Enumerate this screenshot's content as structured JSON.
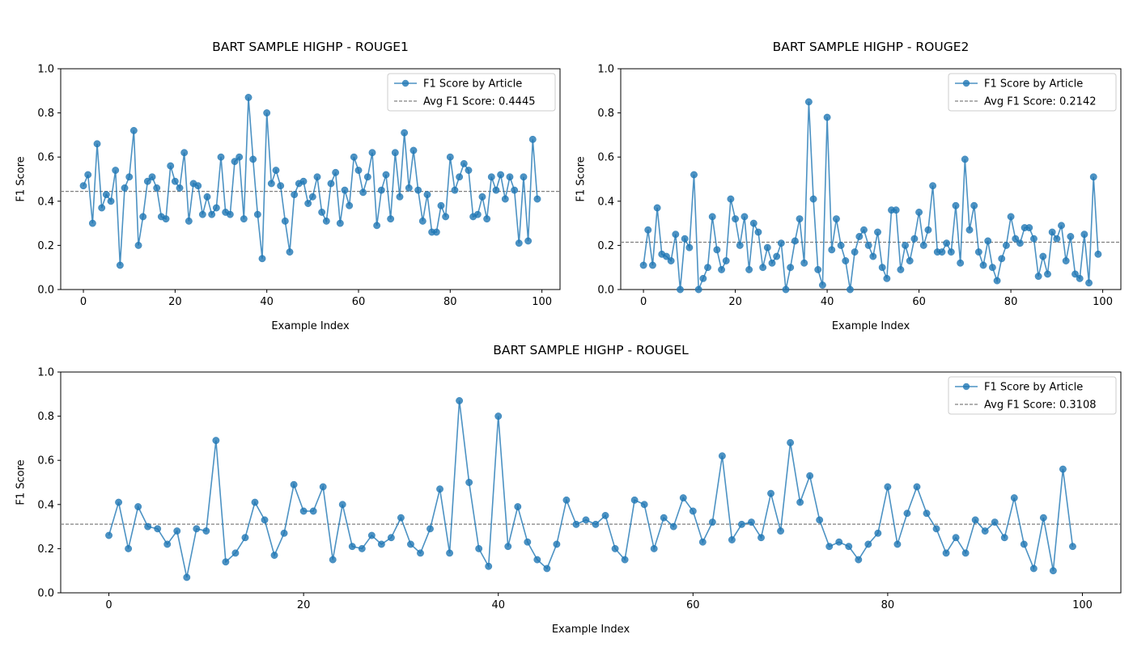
{
  "chart_data": [
    {
      "type": "line",
      "title": "BART SAMPLE HIGHP - ROUGE1",
      "xlabel": "Example Index",
      "ylabel": "F1 Score",
      "xlim": [
        -4.95,
        103.95
      ],
      "ylim": [
        0,
        1.0
      ],
      "xticks": [
        0,
        20,
        40,
        60,
        80,
        100
      ],
      "yticks": [
        0.0,
        0.2,
        0.4,
        0.6,
        0.8,
        1.0
      ],
      "grid": false,
      "legend_position": "top-right",
      "series": [
        {
          "name": "F1 Score by Article",
          "color": "#1f77b4",
          "x": [
            0,
            1,
            2,
            3,
            4,
            5,
            6,
            7,
            8,
            9,
            10,
            11,
            12,
            13,
            14,
            15,
            16,
            17,
            18,
            19,
            20,
            21,
            22,
            23,
            24,
            25,
            26,
            27,
            28,
            29,
            30,
            31,
            32,
            33,
            34,
            35,
            36,
            37,
            38,
            39,
            40,
            41,
            42,
            43,
            44,
            45,
            46,
            47,
            48,
            49,
            50,
            51,
            52,
            53,
            54,
            55,
            56,
            57,
            58,
            59,
            60,
            61,
            62,
            63,
            64,
            65,
            66,
            67,
            68,
            69,
            70,
            71,
            72,
            73,
            74,
            75,
            76,
            77,
            78,
            79,
            80,
            81,
            82,
            83,
            84,
            85,
            86,
            87,
            88,
            89,
            90,
            91,
            92,
            93,
            94,
            95,
            96,
            97,
            98,
            99
          ],
          "y": [
            0.47,
            0.52,
            0.3,
            0.66,
            0.37,
            0.43,
            0.4,
            0.54,
            0.11,
            0.46,
            0.51,
            0.72,
            0.2,
            0.33,
            0.49,
            0.51,
            0.46,
            0.33,
            0.32,
            0.56,
            0.49,
            0.46,
            0.62,
            0.31,
            0.48,
            0.47,
            0.34,
            0.42,
            0.34,
            0.37,
            0.6,
            0.35,
            0.34,
            0.58,
            0.6,
            0.32,
            0.87,
            0.59,
            0.34,
            0.14,
            0.8,
            0.48,
            0.54,
            0.47,
            0.31,
            0.17,
            0.43,
            0.48,
            0.49,
            0.39,
            0.42,
            0.51,
            0.35,
            0.31,
            0.48,
            0.53,
            0.3,
            0.45,
            0.38,
            0.6,
            0.54,
            0.44,
            0.51,
            0.62,
            0.29,
            0.45,
            0.52,
            0.32,
            0.62,
            0.42,
            0.71,
            0.46,
            0.63,
            0.45,
            0.31,
            0.43,
            0.26,
            0.26,
            0.38,
            0.33,
            0.6,
            0.45,
            0.51,
            0.57,
            0.54,
            0.33,
            0.34,
            0.42,
            0.32,
            0.51,
            0.45,
            0.52,
            0.41,
            0.51,
            0.45,
            0.21,
            0.51,
            0.22,
            0.68,
            0.41
          ]
        },
        {
          "name": "Avg F1 Score: 0.4445",
          "color": "#808080",
          "style": "dashed",
          "value": 0.4445
        }
      ]
    },
    {
      "type": "line",
      "title": "BART SAMPLE HIGHP - ROUGE2",
      "xlabel": "Example Index",
      "ylabel": "F1 Score",
      "xlim": [
        -4.95,
        103.95
      ],
      "ylim": [
        0,
        1.0
      ],
      "xticks": [
        0,
        20,
        40,
        60,
        80,
        100
      ],
      "yticks": [
        0.0,
        0.2,
        0.4,
        0.6,
        0.8,
        1.0
      ],
      "grid": false,
      "legend_position": "top-right",
      "series": [
        {
          "name": "F1 Score by Article",
          "color": "#1f77b4",
          "x": [
            0,
            1,
            2,
            3,
            4,
            5,
            6,
            7,
            8,
            9,
            10,
            11,
            12,
            13,
            14,
            15,
            16,
            17,
            18,
            19,
            20,
            21,
            22,
            23,
            24,
            25,
            26,
            27,
            28,
            29,
            30,
            31,
            32,
            33,
            34,
            35,
            36,
            37,
            38,
            39,
            40,
            41,
            42,
            43,
            44,
            45,
            46,
            47,
            48,
            49,
            50,
            51,
            52,
            53,
            54,
            55,
            56,
            57,
            58,
            59,
            60,
            61,
            62,
            63,
            64,
            65,
            66,
            67,
            68,
            69,
            70,
            71,
            72,
            73,
            74,
            75,
            76,
            77,
            78,
            79,
            80,
            81,
            82,
            83,
            84,
            85,
            86,
            87,
            88,
            89,
            90,
            91,
            92,
            93,
            94,
            95,
            96,
            97,
            98,
            99
          ],
          "y": [
            0.11,
            0.27,
            0.11,
            0.37,
            0.16,
            0.15,
            0.13,
            0.25,
            0.0,
            0.23,
            0.19,
            0.52,
            0.0,
            0.05,
            0.1,
            0.33,
            0.18,
            0.09,
            0.13,
            0.41,
            0.32,
            0.2,
            0.33,
            0.09,
            0.3,
            0.26,
            0.1,
            0.19,
            0.12,
            0.15,
            0.21,
            0.0,
            0.1,
            0.22,
            0.32,
            0.12,
            0.85,
            0.41,
            0.09,
            0.02,
            0.78,
            0.18,
            0.32,
            0.2,
            0.13,
            0.0,
            0.17,
            0.24,
            0.27,
            0.2,
            0.15,
            0.26,
            0.1,
            0.05,
            0.36,
            0.36,
            0.09,
            0.2,
            0.13,
            0.23,
            0.35,
            0.2,
            0.27,
            0.47,
            0.17,
            0.17,
            0.21,
            0.17,
            0.38,
            0.12,
            0.59,
            0.27,
            0.38,
            0.17,
            0.11,
            0.22,
            0.1,
            0.04,
            0.14,
            0.2,
            0.33,
            0.23,
            0.21,
            0.28,
            0.28,
            0.23,
            0.06,
            0.15,
            0.07,
            0.26,
            0.23,
            0.29,
            0.13,
            0.24,
            0.07,
            0.05,
            0.25,
            0.03,
            0.51,
            0.16
          ]
        },
        {
          "name": "Avg F1 Score: 0.2142",
          "color": "#808080",
          "style": "dashed",
          "value": 0.2142
        }
      ]
    },
    {
      "type": "line",
      "title": "BART SAMPLE HIGHP - ROUGEL",
      "xlabel": "Example Index",
      "ylabel": "F1 Score",
      "xlim": [
        -4.95,
        103.95
      ],
      "ylim": [
        0,
        1.0
      ],
      "xticks": [
        0,
        20,
        40,
        60,
        80,
        100
      ],
      "yticks": [
        0.0,
        0.2,
        0.4,
        0.6,
        0.8,
        1.0
      ],
      "grid": false,
      "legend_position": "top-right",
      "series": [
        {
          "name": "F1 Score by Article",
          "color": "#1f77b4",
          "x": [
            0,
            1,
            2,
            3,
            4,
            5,
            6,
            7,
            8,
            9,
            10,
            11,
            12,
            13,
            14,
            15,
            16,
            17,
            18,
            19,
            20,
            21,
            22,
            23,
            24,
            25,
            26,
            27,
            28,
            29,
            30,
            31,
            32,
            33,
            34,
            35,
            36,
            37,
            38,
            39,
            40,
            41,
            42,
            43,
            44,
            45,
            46,
            47,
            48,
            49,
            50,
            51,
            52,
            53,
            54,
            55,
            56,
            57,
            58,
            59,
            60,
            61,
            62,
            63,
            64,
            65,
            66,
            67,
            68,
            69,
            70,
            71,
            72,
            73,
            74,
            75,
            76,
            77,
            78,
            79,
            80,
            81,
            82,
            83,
            84,
            85,
            86,
            87,
            88,
            89,
            90,
            91,
            92,
            93,
            94,
            95,
            96,
            97,
            98,
            99
          ],
          "y": [
            0.26,
            0.41,
            0.2,
            0.39,
            0.3,
            0.29,
            0.22,
            0.28,
            0.07,
            0.29,
            0.28,
            0.69,
            0.14,
            0.18,
            0.25,
            0.41,
            0.33,
            0.17,
            0.27,
            0.49,
            0.37,
            0.37,
            0.48,
            0.15,
            0.4,
            0.21,
            0.2,
            0.26,
            0.22,
            0.25,
            0.34,
            0.22,
            0.18,
            0.29,
            0.47,
            0.18,
            0.87,
            0.5,
            0.2,
            0.12,
            0.8,
            0.21,
            0.39,
            0.23,
            0.15,
            0.11,
            0.22,
            0.42,
            0.31,
            0.33,
            0.31,
            0.35,
            0.2,
            0.15,
            0.42,
            0.4,
            0.2,
            0.34,
            0.3,
            0.43,
            0.37,
            0.23,
            0.32,
            0.62,
            0.24,
            0.31,
            0.32,
            0.25,
            0.45,
            0.28,
            0.68,
            0.41,
            0.53,
            0.33,
            0.21,
            0.23,
            0.21,
            0.15,
            0.22,
            0.27,
            0.48,
            0.22,
            0.36,
            0.48,
            0.36,
            0.29,
            0.18,
            0.25,
            0.18,
            0.33,
            0.28,
            0.32,
            0.25,
            0.43,
            0.22,
            0.11,
            0.34,
            0.1,
            0.56,
            0.21
          ]
        },
        {
          "name": "Avg F1 Score: 0.3108",
          "color": "#808080",
          "style": "dashed",
          "value": 0.3108
        }
      ]
    }
  ]
}
